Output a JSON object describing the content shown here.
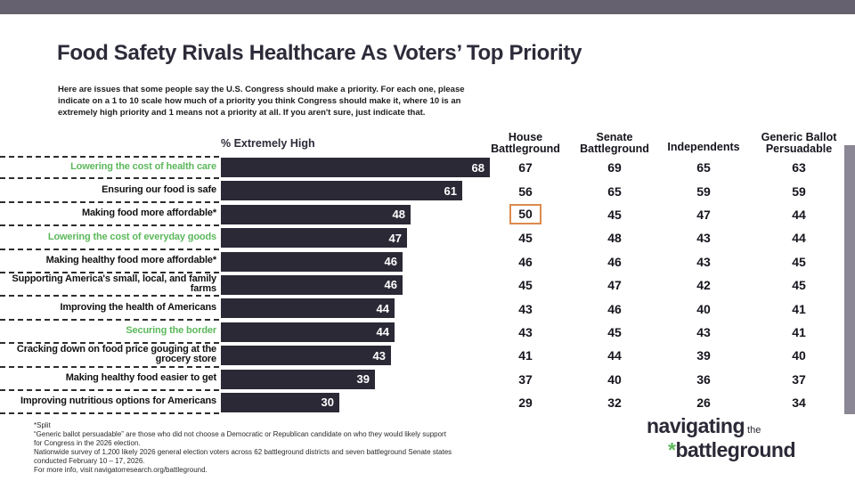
{
  "header": {
    "title": "Food Safety Rivals Healthcare As Voters’ Top Priority",
    "subtitle_lines": [
      "Here are issues that some people say the U.S. Congress should make a priority. For each one, please",
      "indicate on a 1 to 10 scale how much of a priority you think Congress should make it, where 10 is an",
      "extremely high priority and 1 means not a priority at all. If you aren't sure, just indicate that."
    ]
  },
  "chart_data": {
    "type": "bar",
    "orientation": "horizontal",
    "title": "Food Safety Rivals Healthcare As Voters’ Top Priority",
    "bar_series_label": "% Extremely High",
    "xlim": [
      0,
      68
    ],
    "columns": [
      {
        "line1": "House",
        "line2": "Battleground"
      },
      {
        "line1": "Senate",
        "line2": "Battleground"
      },
      {
        "line1": "Independents",
        "line2": ""
      },
      {
        "line1": "Generic Ballot",
        "line2": "Persuadable"
      }
    ],
    "rows": [
      {
        "label": "Lowering the cost of health care",
        "green": true,
        "extremely_high": 68,
        "house": 67,
        "senate": 69,
        "independents": 65,
        "generic_ballot": 63,
        "house_highlighted": false
      },
      {
        "label": "Ensuring our food is safe",
        "green": false,
        "extremely_high": 61,
        "house": 56,
        "senate": 65,
        "independents": 59,
        "generic_ballot": 59,
        "house_highlighted": false
      },
      {
        "label": "Making food more affordable*",
        "green": false,
        "extremely_high": 48,
        "house": 50,
        "senate": 45,
        "independents": 47,
        "generic_ballot": 44,
        "house_highlighted": true
      },
      {
        "label": "Lowering the cost of everyday goods",
        "green": true,
        "extremely_high": 47,
        "house": 45,
        "senate": 48,
        "independents": 43,
        "generic_ballot": 44,
        "house_highlighted": false
      },
      {
        "label": "Making healthy food more affordable*",
        "green": false,
        "extremely_high": 46,
        "house": 46,
        "senate": 46,
        "independents": 43,
        "generic_ballot": 45,
        "house_highlighted": false
      },
      {
        "label": "Supporting America's small, local, and family farms",
        "green": false,
        "extremely_high": 46,
        "house": 45,
        "senate": 47,
        "independents": 42,
        "generic_ballot": 45,
        "house_highlighted": false
      },
      {
        "label": "Improving the health of Americans",
        "green": false,
        "extremely_high": 44,
        "house": 43,
        "senate": 46,
        "independents": 40,
        "generic_ballot": 41,
        "house_highlighted": false
      },
      {
        "label": "Securing the border",
        "green": true,
        "extremely_high": 44,
        "house": 43,
        "senate": 45,
        "independents": 43,
        "generic_ballot": 41,
        "house_highlighted": false
      },
      {
        "label": "Cracking down on food price gouging at the grocery store",
        "green": false,
        "extremely_high": 43,
        "house": 41,
        "senate": 44,
        "independents": 39,
        "generic_ballot": 40,
        "house_highlighted": false
      },
      {
        "label": "Making healthy food easier to get",
        "green": false,
        "extremely_high": 39,
        "house": 37,
        "senate": 40,
        "independents": 36,
        "generic_ballot": 37,
        "house_highlighted": false
      },
      {
        "label": "Improving nutritious options for Americans",
        "green": false,
        "extremely_high": 30,
        "house": 29,
        "senate": 32,
        "independents": 26,
        "generic_ballot": 34,
        "house_highlighted": false
      }
    ]
  },
  "footer": {
    "lines": [
      "*Split",
      "“Generic ballot persuadable” are those who did not choose a Democratic or Republican candidate on who they would likely support",
      "for Congress in the 2026 election.",
      "Nationwide survey of 1,200 likely 2026 general election voters across 62 battleground districts and seven battleground Senate states",
      "conducted February 10 – 17, 2026.",
      "For more info, visit navigatorresearch.org/battleground."
    ]
  },
  "logo": {
    "word1": "navigating",
    "word2": "the",
    "asterisk": "*",
    "word3": "battleground"
  },
  "colors": {
    "bar": "#2B2936",
    "green_label": "#5CB85C",
    "highlight_box": "#DD8A4D",
    "topbar": "#66616F",
    "side_strip": "#8B8794"
  }
}
